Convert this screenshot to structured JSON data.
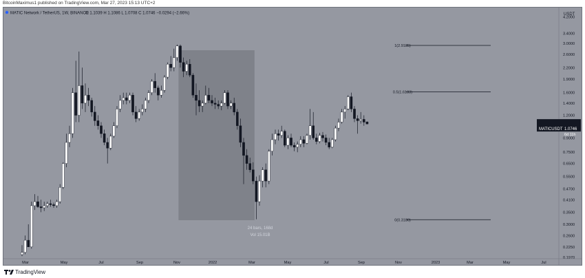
{
  "header": {
    "publish_line": "BitcoinMaximus1 published on TradingView.com, Mar 27, 2023 15:13 UTC+2"
  },
  "legend": {
    "symbol_line": "MATIC Network / TetherUS, 1W, BINANCE",
    "ohlc": "O 1.1039  H 1.1086  L 1.0708  C 1.0746  −0.0294 (−2.66%)"
  },
  "price_scale": {
    "currency": "USDT",
    "last_price_label": "MATICUSDT",
    "last_price": "1.0746",
    "countdown": "6d 11h"
  },
  "range_box": {
    "bars": "24 bars, 168d",
    "vol": "Vol 15.01B"
  },
  "fib_levels": [
    {
      "label": "1(2.9185)",
      "value": 2.9185
    },
    {
      "label": "0.5(1.6183)",
      "value": 1.6183
    },
    {
      "label": "0(0.3180)",
      "value": 0.318
    }
  ],
  "footer": {
    "brand": "TradingView"
  },
  "colors": {
    "background": "#9598a1",
    "up_candle": "#ffffff",
    "down_candle": "#131722",
    "range_box": "#7b7e86",
    "fib_line": "#131722",
    "last_price_badge": "#131722"
  },
  "chart_data": {
    "type": "candlestick",
    "scale": "log",
    "ylim": [
      0.197,
      4.6
    ],
    "y_ticks": [
      "4.2000",
      "3.4000",
      "3.0000",
      "2.6000",
      "2.2000",
      "1.9000",
      "1.6000",
      "1.4000",
      "1.2000",
      "1.0000",
      "0.9000",
      "0.7500",
      "0.6500",
      "0.5500",
      "0.4700",
      "0.4100",
      "0.3500",
      "0.3000",
      "0.2600",
      "0.2250",
      "0.1970"
    ],
    "x_ticks": [
      "Mar",
      "May",
      "Jul",
      "Sep",
      "Nov",
      "2022",
      "Mar",
      "May",
      "Jul",
      "Sep",
      "Nov",
      "2023",
      "Mar",
      "May",
      "Jul"
    ],
    "candles": [
      {
        "o": 0.204,
        "h": 0.23,
        "l": 0.2,
        "c": 0.21
      },
      {
        "o": 0.21,
        "h": 0.26,
        "l": 0.205,
        "c": 0.245
      },
      {
        "o": 0.245,
        "h": 0.3,
        "l": 0.235,
        "c": 0.225
      },
      {
        "o": 0.225,
        "h": 0.4,
        "l": 0.22,
        "c": 0.38
      },
      {
        "o": 0.38,
        "h": 0.44,
        "l": 0.36,
        "c": 0.4
      },
      {
        "o": 0.4,
        "h": 0.43,
        "l": 0.37,
        "c": 0.375
      },
      {
        "o": 0.375,
        "h": 0.41,
        "l": 0.35,
        "c": 0.37
      },
      {
        "o": 0.37,
        "h": 0.4,
        "l": 0.355,
        "c": 0.38
      },
      {
        "o": 0.38,
        "h": 0.4,
        "l": 0.37,
        "c": 0.39
      },
      {
        "o": 0.39,
        "h": 0.41,
        "l": 0.375,
        "c": 0.385
      },
      {
        "o": 0.385,
        "h": 0.395,
        "l": 0.37,
        "c": 0.38
      },
      {
        "o": 0.38,
        "h": 0.41,
        "l": 0.37,
        "c": 0.4
      },
      {
        "o": 0.4,
        "h": 0.5,
        "l": 0.39,
        "c": 0.48
      },
      {
        "o": 0.48,
        "h": 0.66,
        "l": 0.47,
        "c": 0.65
      },
      {
        "o": 0.65,
        "h": 0.95,
        "l": 0.62,
        "c": 0.85
      },
      {
        "o": 0.85,
        "h": 1.05,
        "l": 0.8,
        "c": 0.95
      },
      {
        "o": 0.95,
        "h": 1.7,
        "l": 0.9,
        "c": 1.6
      },
      {
        "o": 1.6,
        "h": 2.4,
        "l": 1.1,
        "c": 1.2
      },
      {
        "o": 1.2,
        "h": 2.7,
        "l": 1.1,
        "c": 1.75
      },
      {
        "o": 1.75,
        "h": 2.2,
        "l": 1.3,
        "c": 1.4
      },
      {
        "o": 1.4,
        "h": 1.8,
        "l": 1.25,
        "c": 1.55
      },
      {
        "o": 1.55,
        "h": 1.7,
        "l": 1.35,
        "c": 1.45
      },
      {
        "o": 1.45,
        "h": 1.5,
        "l": 1.18,
        "c": 1.25
      },
      {
        "o": 1.25,
        "h": 1.35,
        "l": 1.05,
        "c": 1.12
      },
      {
        "o": 1.12,
        "h": 1.2,
        "l": 1.0,
        "c": 1.05
      },
      {
        "o": 1.05,
        "h": 1.1,
        "l": 0.9,
        "c": 0.95
      },
      {
        "o": 0.95,
        "h": 1.0,
        "l": 0.82,
        "c": 0.85
      },
      {
        "o": 0.85,
        "h": 0.9,
        "l": 0.65,
        "c": 0.79
      },
      {
        "o": 0.79,
        "h": 0.95,
        "l": 0.77,
        "c": 0.92
      },
      {
        "o": 0.92,
        "h": 1.1,
        "l": 0.9,
        "c": 1.05
      },
      {
        "o": 1.05,
        "h": 1.35,
        "l": 1.02,
        "c": 1.3
      },
      {
        "o": 1.3,
        "h": 1.55,
        "l": 1.25,
        "c": 1.45
      },
      {
        "o": 1.45,
        "h": 1.6,
        "l": 1.38,
        "c": 1.5
      },
      {
        "o": 1.5,
        "h": 1.6,
        "l": 1.38,
        "c": 1.45
      },
      {
        "o": 1.45,
        "h": 1.6,
        "l": 1.4,
        "c": 1.55
      },
      {
        "o": 1.55,
        "h": 1.6,
        "l": 1.2,
        "c": 1.25
      },
      {
        "o": 1.25,
        "h": 1.35,
        "l": 1.1,
        "c": 1.15
      },
      {
        "o": 1.15,
        "h": 1.3,
        "l": 1.12,
        "c": 1.25
      },
      {
        "o": 1.25,
        "h": 1.38,
        "l": 1.2,
        "c": 1.3
      },
      {
        "o": 1.3,
        "h": 1.5,
        "l": 1.25,
        "c": 1.45
      },
      {
        "o": 1.45,
        "h": 1.65,
        "l": 1.4,
        "c": 1.6
      },
      {
        "o": 1.6,
        "h": 1.9,
        "l": 1.55,
        "c": 1.85
      },
      {
        "o": 1.85,
        "h": 2.05,
        "l": 1.6,
        "c": 1.7
      },
      {
        "o": 1.7,
        "h": 1.75,
        "l": 1.45,
        "c": 1.55
      },
      {
        "o": 1.55,
        "h": 1.75,
        "l": 1.5,
        "c": 1.65
      },
      {
        "o": 1.65,
        "h": 2.0,
        "l": 1.6,
        "c": 1.95
      },
      {
        "o": 1.95,
        "h": 2.35,
        "l": 1.9,
        "c": 2.3
      },
      {
        "o": 2.3,
        "h": 2.55,
        "l": 2.1,
        "c": 2.2
      },
      {
        "o": 2.2,
        "h": 2.8,
        "l": 2.1,
        "c": 2.5
      },
      {
        "o": 2.5,
        "h": 2.95,
        "l": 2.4,
        "c": 2.9
      },
      {
        "o": 2.9,
        "h": 2.95,
        "l": 2.2,
        "c": 2.35
      },
      {
        "o": 2.35,
        "h": 2.5,
        "l": 1.95,
        "c": 2.1
      },
      {
        "o": 2.1,
        "h": 2.4,
        "l": 2.0,
        "c": 2.3
      },
      {
        "o": 2.3,
        "h": 2.45,
        "l": 1.95,
        "c": 2.0
      },
      {
        "o": 2.0,
        "h": 2.05,
        "l": 1.5,
        "c": 1.55
      },
      {
        "o": 1.55,
        "h": 1.8,
        "l": 1.2,
        "c": 1.45
      },
      {
        "o": 1.45,
        "h": 1.65,
        "l": 1.25,
        "c": 1.35
      },
      {
        "o": 1.35,
        "h": 1.45,
        "l": 1.25,
        "c": 1.4
      },
      {
        "o": 1.4,
        "h": 1.75,
        "l": 1.38,
        "c": 1.55
      },
      {
        "o": 1.55,
        "h": 1.7,
        "l": 1.4,
        "c": 1.45
      },
      {
        "o": 1.45,
        "h": 1.55,
        "l": 1.35,
        "c": 1.4
      },
      {
        "o": 1.4,
        "h": 1.5,
        "l": 1.3,
        "c": 1.38
      },
      {
        "o": 1.38,
        "h": 1.45,
        "l": 1.3,
        "c": 1.35
      },
      {
        "o": 1.35,
        "h": 1.45,
        "l": 1.28,
        "c": 1.4
      },
      {
        "o": 1.4,
        "h": 1.65,
        "l": 1.38,
        "c": 1.6
      },
      {
        "o": 1.6,
        "h": 1.65,
        "l": 1.3,
        "c": 1.35
      },
      {
        "o": 1.35,
        "h": 1.45,
        "l": 1.3,
        "c": 1.4
      },
      {
        "o": 1.4,
        "h": 1.5,
        "l": 1.2,
        "c": 1.25
      },
      {
        "o": 1.25,
        "h": 1.3,
        "l": 1.0,
        "c": 1.05
      },
      {
        "o": 1.05,
        "h": 1.15,
        "l": 0.8,
        "c": 0.85
      },
      {
        "o": 0.85,
        "h": 0.9,
        "l": 0.5,
        "c": 0.72
      },
      {
        "o": 0.72,
        "h": 0.78,
        "l": 0.6,
        "c": 0.65
      },
      {
        "o": 0.65,
        "h": 0.7,
        "l": 0.58,
        "c": 0.6
      },
      {
        "o": 0.6,
        "h": 0.66,
        "l": 0.5,
        "c": 0.52
      },
      {
        "o": 0.52,
        "h": 0.55,
        "l": 0.32,
        "c": 0.4
      },
      {
        "o": 0.4,
        "h": 0.56,
        "l": 0.38,
        "c": 0.52
      },
      {
        "o": 0.52,
        "h": 0.62,
        "l": 0.48,
        "c": 0.6
      },
      {
        "o": 0.6,
        "h": 0.65,
        "l": 0.48,
        "c": 0.52
      },
      {
        "o": 0.52,
        "h": 0.78,
        "l": 0.5,
        "c": 0.76
      },
      {
        "o": 0.76,
        "h": 0.95,
        "l": 0.72,
        "c": 0.88
      },
      {
        "o": 0.88,
        "h": 1.0,
        "l": 0.83,
        "c": 0.95
      },
      {
        "o": 0.95,
        "h": 1.0,
        "l": 0.87,
        "c": 0.93
      },
      {
        "o": 0.93,
        "h": 1.05,
        "l": 0.9,
        "c": 0.98
      },
      {
        "o": 0.98,
        "h": 1.0,
        "l": 0.8,
        "c": 0.82
      },
      {
        "o": 0.82,
        "h": 0.93,
        "l": 0.78,
        "c": 0.9
      },
      {
        "o": 0.9,
        "h": 0.95,
        "l": 0.8,
        "c": 0.82
      },
      {
        "o": 0.82,
        "h": 0.85,
        "l": 0.76,
        "c": 0.8
      },
      {
        "o": 0.8,
        "h": 0.86,
        "l": 0.75,
        "c": 0.83
      },
      {
        "o": 0.83,
        "h": 0.92,
        "l": 0.8,
        "c": 0.88
      },
      {
        "o": 0.88,
        "h": 0.92,
        "l": 0.8,
        "c": 0.84
      },
      {
        "o": 0.84,
        "h": 0.95,
        "l": 0.83,
        "c": 0.93
      },
      {
        "o": 0.93,
        "h": 1.3,
        "l": 0.88,
        "c": 1.05
      },
      {
        "o": 1.05,
        "h": 1.25,
        "l": 0.88,
        "c": 0.9
      },
      {
        "o": 0.9,
        "h": 0.95,
        "l": 0.83,
        "c": 0.86
      },
      {
        "o": 0.86,
        "h": 0.96,
        "l": 0.84,
        "c": 0.93
      },
      {
        "o": 0.93,
        "h": 0.97,
        "l": 0.86,
        "c": 0.9
      },
      {
        "o": 0.9,
        "h": 0.94,
        "l": 0.82,
        "c": 0.85
      },
      {
        "o": 0.85,
        "h": 0.9,
        "l": 0.78,
        "c": 0.8
      },
      {
        "o": 0.8,
        "h": 0.9,
        "l": 0.79,
        "c": 0.88
      },
      {
        "o": 0.88,
        "h": 1.05,
        "l": 0.86,
        "c": 1.02
      },
      {
        "o": 1.02,
        "h": 1.15,
        "l": 0.98,
        "c": 1.1
      },
      {
        "o": 1.1,
        "h": 1.3,
        "l": 1.08,
        "c": 1.25
      },
      {
        "o": 1.25,
        "h": 1.35,
        "l": 1.15,
        "c": 1.3
      },
      {
        "o": 1.3,
        "h": 1.55,
        "l": 1.28,
        "c": 1.52
      },
      {
        "o": 1.52,
        "h": 1.6,
        "l": 1.25,
        "c": 1.3
      },
      {
        "o": 1.3,
        "h": 1.35,
        "l": 1.1,
        "c": 1.15
      },
      {
        "o": 1.15,
        "h": 1.2,
        "l": 0.95,
        "c": 1.12
      },
      {
        "o": 1.12,
        "h": 1.25,
        "l": 1.08,
        "c": 1.14
      },
      {
        "o": 1.14,
        "h": 1.2,
        "l": 1.05,
        "c": 1.1
      },
      {
        "o": 1.1039,
        "h": 1.1086,
        "l": 1.0708,
        "c": 1.0746
      }
    ]
  }
}
